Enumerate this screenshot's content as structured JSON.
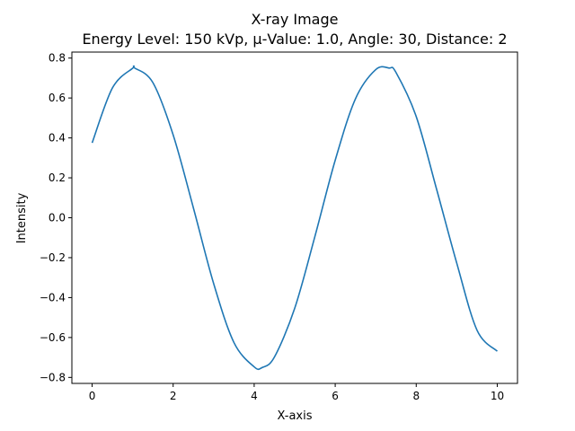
{
  "chart_data": {
    "type": "line",
    "title": "X-ray Image",
    "subtitle": "Energy Level: 150 kVp, μ-Value: 1.0, Angle: 30, Distance: 2",
    "xlabel": "X-axis",
    "ylabel": "Intensity",
    "xlim": [
      -0.5,
      10.5
    ],
    "ylim": [
      -0.83,
      0.83
    ],
    "xticks": [
      0,
      2,
      4,
      6,
      8,
      10
    ],
    "xtick_labels": [
      "0",
      "2",
      "4",
      "6",
      "8",
      "10"
    ],
    "yticks": [
      0.8,
      0.6,
      0.4,
      0.2,
      0.0,
      -0.2,
      -0.4,
      -0.6,
      -0.8
    ],
    "ytick_labels": [
      "0.8",
      "0.6",
      "0.4",
      "0.2",
      "0.0",
      "−0.2",
      "−0.4",
      "−0.6",
      "−0.8"
    ],
    "grid": false,
    "series": [
      {
        "color": "#1f77b4",
        "x": [
          0,
          0.5,
          1,
          1.05,
          1.5,
          2,
          2.5,
          3,
          3.5,
          4,
          4.2,
          4.5,
          5,
          5.5,
          6,
          6.5,
          7,
          7.33,
          7.5,
          8,
          8.5,
          9,
          9.5,
          10
        ],
        "y": [
          0.375,
          0.65,
          0.749,
          0.75,
          0.677,
          0.415,
          0.049,
          -0.33,
          -0.625,
          -0.747,
          -0.75,
          -0.698,
          -0.454,
          -0.093,
          0.288,
          0.596,
          0.742,
          0.75,
          0.728,
          0.507,
          0.145,
          -0.227,
          -0.563,
          -0.669
        ]
      }
    ]
  }
}
